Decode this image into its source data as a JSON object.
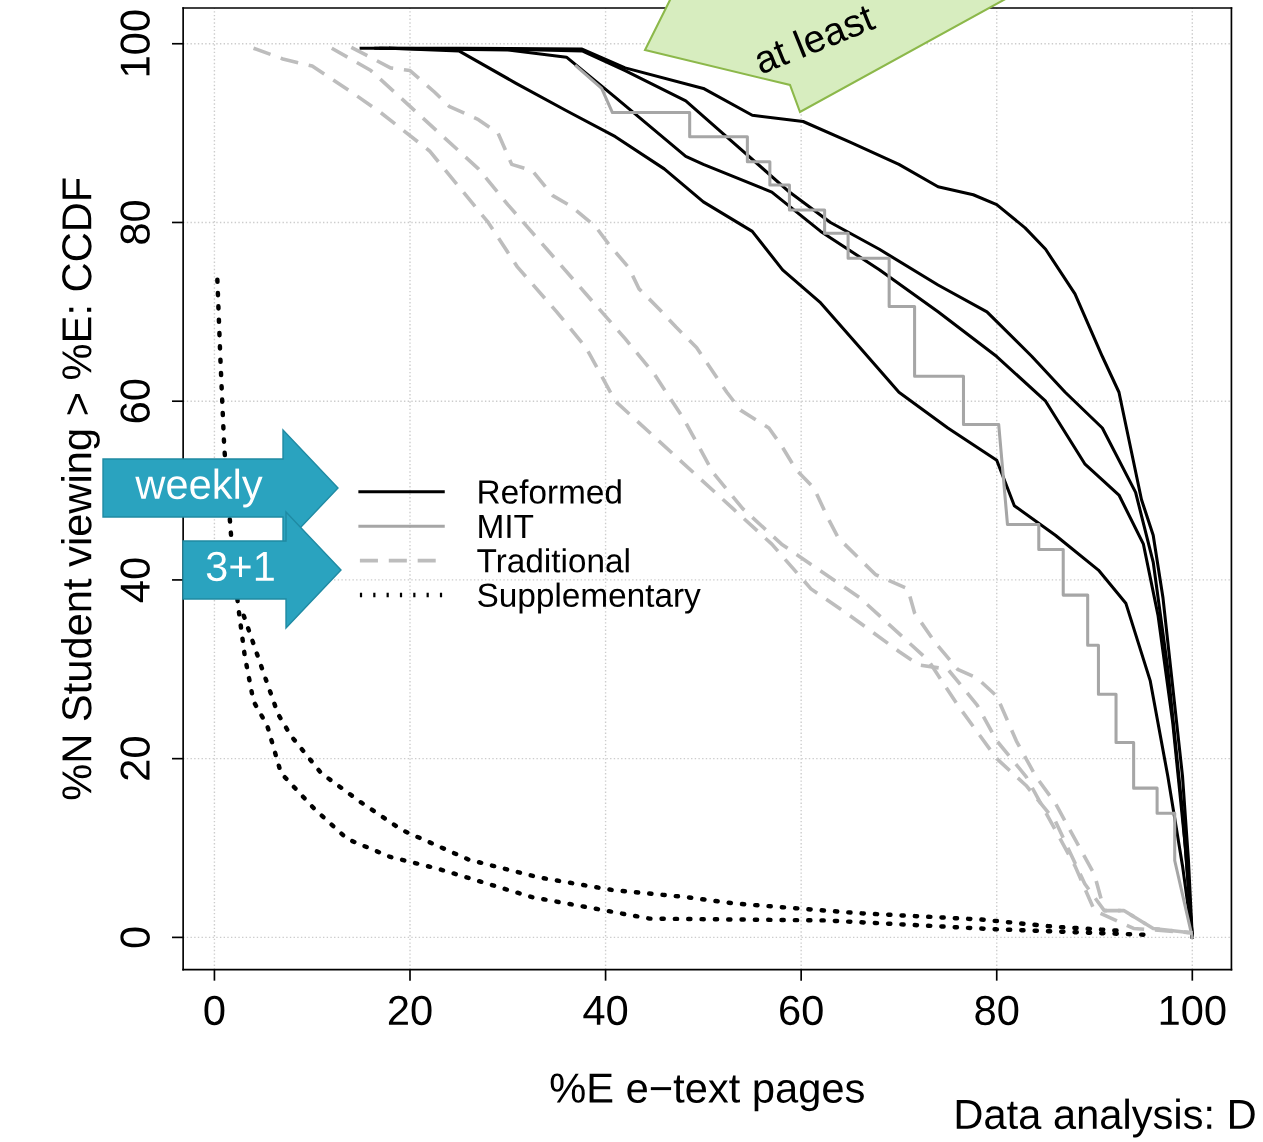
{
  "chart_data": {
    "type": "line",
    "xlabel": "%E e−text pages",
    "ylabel": "%N Student viewing > %E: CCDF",
    "xlim": [
      -3.2,
      104
    ],
    "ylim": [
      -3.6,
      104
    ],
    "xticks": [
      0,
      20,
      40,
      60,
      80,
      100
    ],
    "yticks": [
      0,
      20,
      40,
      60,
      80,
      100
    ],
    "grid": true,
    "legend": "left",
    "marker": "none",
    "series": [
      {
        "name": "Reformed",
        "color": "#000000",
        "line_style": "solid",
        "x": [
          15,
          25,
          37.6,
          42,
          50,
          55,
          60.2,
          65,
          70,
          74,
          77.6,
          80,
          82.9,
          85,
          88,
          90.8,
          92.5,
          94.8,
          96,
          97,
          98,
          99,
          99.6,
          100
        ],
        "values": [
          99.5,
          99.5,
          99.4,
          97.3,
          95,
          92,
          91.3,
          89,
          86.5,
          84,
          83.1,
          82,
          79.4,
          77,
          72,
          65,
          61,
          49,
          45,
          38,
          28,
          18,
          8.7,
          0
        ]
      },
      {
        "color": "#000000",
        "line_style": "solid",
        "x": [
          16.5,
          30,
          37.6,
          42,
          48.2,
          53,
          58.8,
          63,
          68,
          74,
          79,
          83.6,
          87,
          90.8,
          94.2,
          96,
          97.5,
          99,
          100
        ],
        "values": [
          99.5,
          99.4,
          99.2,
          97,
          93.6,
          89,
          83.4,
          80,
          77,
          73,
          70,
          65,
          61,
          57,
          49.8,
          42,
          30,
          14,
          0
        ]
      },
      {
        "color": "#000000",
        "line_style": "solid",
        "x": [
          17,
          30,
          36,
          41,
          48.2,
          50,
          57,
          62,
          68,
          74,
          80,
          85,
          89,
          92.5,
          95,
          96.5,
          98,
          99.3,
          100
        ],
        "values": [
          99.5,
          99.3,
          98.5,
          94,
          87.4,
          86.5,
          83.4,
          79,
          74.7,
          70,
          65,
          60,
          53,
          49.5,
          44,
          36,
          24,
          10,
          0
        ]
      },
      {
        "color": "#000000",
        "line_style": "solid",
        "x": [
          18,
          25,
          30.8,
          36,
          41,
          46,
          50,
          55,
          58.1,
          62,
          66,
          70,
          75,
          80,
          81.8,
          86,
          90.4,
          93.2,
          95.7,
          97.5,
          99,
          100
        ],
        "values": [
          99.5,
          99.2,
          95.6,
          92.5,
          89.6,
          86,
          82.3,
          79,
          74.7,
          71,
          66,
          61,
          57,
          53.4,
          48.3,
          45,
          41.1,
          37.4,
          28.7,
          18,
          8,
          0
        ]
      },
      {
        "name": "MIT",
        "color": "#a6a6a6",
        "line_style": "solid",
        "x": [
          37,
          39.6,
          40.7,
          48.6,
          48.6,
          54.5,
          54.5,
          56.8,
          56.8,
          58.8,
          58.8,
          62.4,
          62.4,
          64.8,
          64.8,
          69,
          69,
          71.6,
          71.6,
          76.6,
          76.6,
          80.2,
          81.1,
          84.3,
          84.3,
          86.8,
          86.8,
          89.3,
          89.3,
          90.4,
          90.4,
          92.2,
          92.2,
          94,
          94,
          96.4,
          96.4,
          98.2,
          98.2,
          100
        ],
        "values": [
          97.5,
          95,
          92.3,
          92.3,
          89.6,
          89.6,
          86.8,
          86.8,
          84.2,
          84.2,
          81.4,
          81.4,
          78.8,
          78.8,
          76,
          76,
          70.6,
          70.6,
          62.8,
          62.8,
          57.4,
          57.4,
          46.2,
          46.2,
          43.4,
          43.4,
          38.3,
          38.3,
          32.7,
          32.7,
          27.2,
          27.2,
          21.8,
          21.8,
          16.7,
          16.7,
          13.9,
          13.9,
          8.6,
          0
        ]
      },
      {
        "name": "Traditional",
        "color": "#bdbdbd",
        "line_style": "dashed",
        "x": [
          4,
          7,
          10,
          14,
          17,
          22,
          25,
          28,
          31,
          35,
          38,
          41,
          45,
          49,
          53,
          57,
          61,
          65,
          70,
          72,
          75,
          78,
          80,
          83,
          86,
          88,
          90,
          94,
          100
        ],
        "values": [
          99.5,
          98.3,
          97.5,
          94.6,
          92.3,
          88,
          84,
          80,
          75,
          70,
          66,
          60,
          56,
          52,
          48,
          44,
          39,
          36,
          32,
          30.5,
          30,
          26,
          22,
          18,
          12,
          8,
          3,
          1,
          0.5
        ]
      },
      {
        "color": "#bdbdbd",
        "line_style": "dashed",
        "x": [
          12,
          16,
          19,
          23,
          27,
          30,
          34,
          38,
          42,
          45,
          48,
          51,
          54,
          58,
          62,
          66,
          69,
          73,
          76,
          80,
          83,
          86,
          89,
          91,
          93,
          96,
          100
        ],
        "values": [
          99.5,
          97,
          94,
          90,
          86,
          82,
          77,
          72,
          67,
          63,
          58,
          52,
          48,
          44,
          41,
          38,
          35,
          31,
          26,
          20,
          17,
          13,
          6,
          3,
          3,
          1,
          0.5
        ]
      },
      {
        "color": "#bdbdbd",
        "line_style": "dashed",
        "x": [
          14,
          18,
          20,
          22.5,
          24,
          27,
          29,
          30.4,
          32.5,
          34.6,
          36.5,
          39,
          40.3,
          42.4,
          43.4,
          45.5,
          47.2,
          49.3,
          52.4,
          53.8,
          56.7,
          58,
          59.5,
          61.3,
          62.7,
          63.8,
          66.2,
          67.6,
          70.9,
          71.6,
          73.7,
          76,
          78,
          80,
          82,
          84,
          86,
          88,
          90,
          91,
          93,
          96,
          100
        ],
        "values": [
          99.6,
          97.3,
          97,
          94.6,
          93,
          91.5,
          90,
          86.5,
          85.8,
          83,
          81.8,
          79.5,
          77.6,
          74.9,
          72.6,
          70.3,
          68.3,
          66,
          61,
          59,
          57,
          55,
          52.3,
          50.3,
          47,
          44.7,
          42.1,
          40.6,
          39,
          36.3,
          33,
          30,
          29,
          27,
          22,
          18,
          15,
          11,
          7,
          3,
          3,
          1,
          0.5
        ]
      },
      {
        "name": "Supplementary",
        "color": "#000000",
        "line_style": "dotted",
        "x": [
          0.3,
          0.6,
          1,
          1.7,
          2.4,
          3.1,
          4,
          5.4,
          6.8,
          10.2,
          13.6,
          18,
          22.8,
          32.5,
          44.5,
          62.4,
          80,
          95
        ],
        "values": [
          73.6,
          65,
          54.9,
          45,
          37.3,
          31.5,
          26.4,
          23.7,
          18.4,
          14.4,
          11,
          9,
          7.7,
          4.5,
          2.1,
          1.9,
          0.9,
          0.3
        ]
      },
      {
        "color": "#000000",
        "line_style": "dotted",
        "x": [
          3,
          4.8,
          6.5,
          7.8,
          10.9,
          15,
          19.2,
          26,
          33.2,
          40.7,
          48.3,
          53.1,
          66,
          78.4,
          85.8,
          93.2
        ],
        "values": [
          36,
          30.3,
          25,
          22.6,
          18.4,
          15.1,
          12,
          8.7,
          6.7,
          5.3,
          4.5,
          3.8,
          2.7,
          2,
          1.2,
          0.7
        ]
      }
    ],
    "annotations": [
      "weekly",
      "3+1",
      "at least",
      "Data analysis: D"
    ]
  }
}
